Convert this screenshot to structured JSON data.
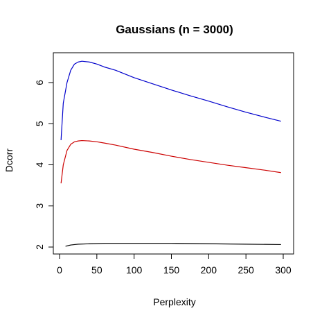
{
  "chart_data": {
    "type": "line",
    "title": "Gaussians (n = 3000)",
    "xlabel": "Perplexity",
    "ylabel": "Dcorr",
    "xlim": [
      0,
      300
    ],
    "ylim": [
      2,
      6.5
    ],
    "xticks": [
      0,
      50,
      100,
      150,
      200,
      250,
      300
    ],
    "yticks": [
      2,
      3,
      4,
      5,
      6
    ],
    "grid": false,
    "legend": "none",
    "series": [
      {
        "color": "#0000cc",
        "x": [
          2,
          5,
          10,
          15,
          20,
          25,
          30,
          40,
          50,
          60,
          75,
          100,
          125,
          150,
          175,
          200,
          225,
          250,
          275,
          297
        ],
        "y": [
          4.6,
          5.5,
          6.0,
          6.3,
          6.45,
          6.5,
          6.52,
          6.5,
          6.45,
          6.38,
          6.3,
          6.12,
          5.97,
          5.82,
          5.68,
          5.55,
          5.41,
          5.28,
          5.16,
          5.06
        ]
      },
      {
        "color": "#cc0000",
        "x": [
          2,
          5,
          10,
          15,
          20,
          25,
          30,
          40,
          50,
          60,
          75,
          100,
          125,
          150,
          175,
          200,
          225,
          250,
          275,
          297
        ],
        "y": [
          3.55,
          4.0,
          4.35,
          4.5,
          4.56,
          4.58,
          4.59,
          4.58,
          4.56,
          4.53,
          4.48,
          4.38,
          4.3,
          4.21,
          4.13,
          4.06,
          3.99,
          3.93,
          3.87,
          3.81
        ]
      },
      {
        "color": "#000000",
        "x": [
          8,
          15,
          25,
          40,
          60,
          100,
          150,
          200,
          250,
          297
        ],
        "y": [
          2.02,
          2.05,
          2.07,
          2.08,
          2.09,
          2.09,
          2.09,
          2.08,
          2.07,
          2.06
        ]
      }
    ]
  }
}
